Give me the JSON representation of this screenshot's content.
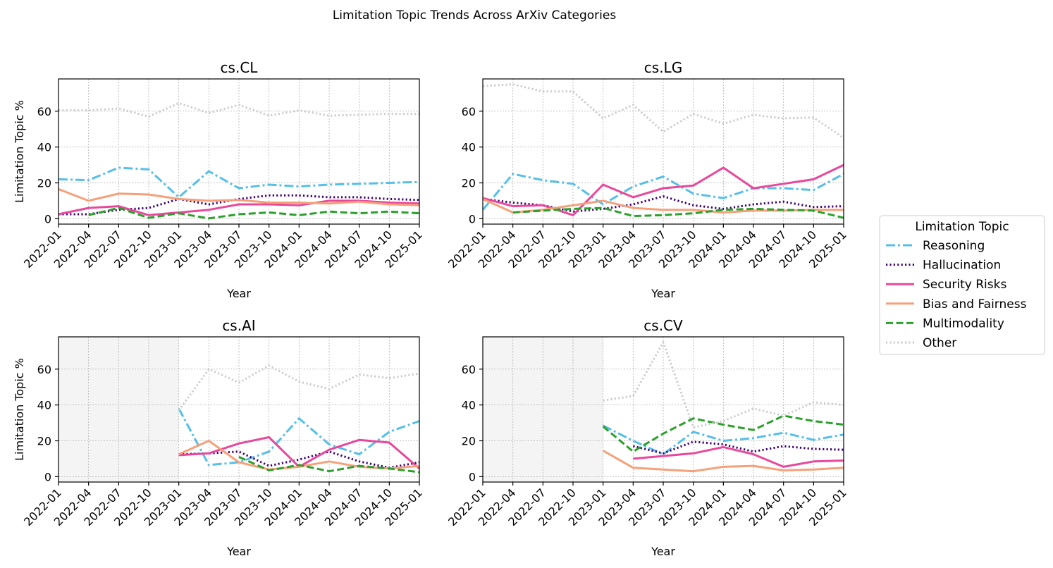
{
  "chart_data": {
    "type": "line",
    "title": "Limitation Topic Trends Across ArXiv Categories",
    "xlabel": "Year",
    "ylabel": "Limitation Topic %",
    "ylim": [
      -3,
      78
    ],
    "yticks": [
      0,
      20,
      40,
      60
    ],
    "x": [
      "2022-01",
      "2022-04",
      "2022-07",
      "2022-10",
      "2023-01",
      "2023-04",
      "2023-07",
      "2023-10",
      "2024-01",
      "2024-04",
      "2024-07",
      "2024-10",
      "2025-01"
    ],
    "legend": {
      "title": "Limitation Topic",
      "location": "right",
      "entries": [
        "Reasoning",
        "Hallucination",
        "Security Risks",
        "Bias and Fairness",
        "Multimodality",
        "Other"
      ]
    },
    "styles": {
      "Reasoning": {
        "color": "#56bfe6",
        "dash": "dashdot"
      },
      "Hallucination": {
        "color": "#3f0077",
        "dash": "dotted"
      },
      "Security Risks": {
        "color": "#e8489b",
        "dash": "solid"
      },
      "Bias and Fairness": {
        "color": "#f6a07a",
        "dash": "solid"
      },
      "Multimodality": {
        "color": "#2ca02c",
        "dash": "dashed"
      },
      "Other": {
        "color": "#cccccc",
        "dash": "dotted"
      }
    },
    "shade_color": "#f4f4f4",
    "panels": [
      {
        "name": "cs.CL",
        "series": [
          {
            "name": "Reasoning",
            "values": [
              22,
              21.5,
              28.5,
              27.5,
              12,
              26.5,
              17,
              19,
              18,
              19,
              19.5,
              20,
              20.5
            ]
          },
          {
            "name": "Hallucination",
            "values": [
              2.5,
              2.5,
              5,
              6,
              11,
              8,
              11,
              13,
              13,
              12,
              12,
              11,
              10.5
            ]
          },
          {
            "name": "Security Risks",
            "values": [
              2.5,
              6,
              7,
              2,
              3.5,
              5,
              8,
              8,
              7.5,
              10,
              10,
              9,
              8.5
            ]
          },
          {
            "name": "Bias and Fairness",
            "values": [
              16.5,
              10,
              14,
              13.5,
              11,
              10,
              10.5,
              9,
              9,
              8.5,
              9.5,
              8,
              7.5
            ]
          },
          {
            "name": "Multimodality",
            "values": [
              null,
              2,
              6,
              0.5,
              3,
              0.2,
              2.5,
              3.5,
              2,
              4,
              3,
              4,
              3
            ]
          },
          {
            "name": "Other",
            "values": [
              60.5,
              60.5,
              61.5,
              57,
              64.5,
              59,
              63.5,
              57.5,
              60.5,
              57.5,
              58,
              58.5,
              58.5
            ]
          }
        ]
      },
      {
        "name": "cs.LG",
        "series": [
          {
            "name": "Reasoning",
            "values": [
              5,
              25,
              21.5,
              19.5,
              8,
              18,
              23.5,
              14,
              11.5,
              17,
              17,
              16,
              25
            ]
          },
          {
            "name": "Hallucination",
            "values": [
              11,
              9,
              7.5,
              4,
              5.5,
              8,
              12.5,
              7.5,
              5.5,
              8,
              9.5,
              6.5,
              7
            ]
          },
          {
            "name": "Security Risks",
            "values": [
              11.5,
              7,
              7.5,
              2,
              19,
              12,
              17,
              18.5,
              28.5,
              17,
              19.5,
              22,
              30
            ]
          },
          {
            "name": "Bias and Fairness",
            "values": [
              11,
              3.5,
              5,
              7.5,
              10,
              6,
              5,
              5,
              3.5,
              4.5,
              4.5,
              5,
              5
            ]
          },
          {
            "name": "Multimodality",
            "values": [
              null,
              3.5,
              4.5,
              5.5,
              6,
              1.5,
              2,
              3,
              5,
              5.5,
              5,
              4.5,
              0.5
            ]
          },
          {
            "name": "Other",
            "values": [
              74,
              75,
              71,
              71,
              56,
              63.5,
              48.5,
              58.5,
              53,
              58,
              56,
              56.5,
              45
            ]
          }
        ]
      },
      {
        "name": "cs.AI",
        "shade_until": "2023-01",
        "series": [
          {
            "name": "Reasoning",
            "values": [
              null,
              null,
              null,
              null,
              38,
              6.5,
              8,
              14,
              32.5,
              18,
              12.5,
              25,
              31
            ]
          },
          {
            "name": "Hallucination",
            "values": [
              null,
              null,
              null,
              null,
              12.5,
              13,
              14,
              6,
              9.5,
              14,
              8.5,
              5,
              8
            ]
          },
          {
            "name": "Security Risks",
            "values": [
              null,
              null,
              null,
              null,
              12,
              13,
              18.5,
              22,
              5.5,
              15,
              20.5,
              19,
              4.5
            ]
          },
          {
            "name": "Bias and Fairness",
            "values": [
              null,
              null,
              null,
              null,
              12.5,
              20,
              8,
              4,
              5.5,
              8.5,
              5.5,
              4.5,
              6
            ]
          },
          {
            "name": "Multimodality",
            "values": [
              null,
              null,
              null,
              null,
              null,
              null,
              11,
              3.5,
              6.5,
              3,
              6,
              4.5,
              2.5
            ]
          },
          {
            "name": "Other",
            "values": [
              null,
              null,
              null,
              null,
              37,
              60,
              52.5,
              62,
              53,
              49,
              57,
              55,
              57.5
            ]
          }
        ]
      },
      {
        "name": "cs.CV",
        "shade_until": "2023-01",
        "series": [
          {
            "name": "Reasoning",
            "values": [
              null,
              null,
              null,
              null,
              28.5,
              20,
              12.5,
              25,
              20,
              21.5,
              24.5,
              20.5,
              23.5
            ]
          },
          {
            "name": "Hallucination",
            "values": [
              null,
              null,
              null,
              null,
              null,
              17,
              13,
              19.5,
              18,
              14,
              17,
              15.5,
              15
            ]
          },
          {
            "name": "Security Risks",
            "values": [
              null,
              null,
              null,
              null,
              null,
              10,
              11.5,
              13,
              16.5,
              12.5,
              5.5,
              8.5,
              9
            ]
          },
          {
            "name": "Bias and Fairness",
            "values": [
              null,
              null,
              null,
              null,
              14.5,
              5,
              4,
              3,
              5.5,
              6,
              3.5,
              4,
              5
            ]
          },
          {
            "name": "Multimodality",
            "values": [
              null,
              null,
              null,
              null,
              28,
              14,
              24,
              32.5,
              29,
              26,
              34,
              31,
              29
            ]
          },
          {
            "name": "Other",
            "values": [
              null,
              null,
              null,
              null,
              42.5,
              45,
              75,
              27.5,
              31,
              38,
              34,
              41.5,
              40
            ]
          }
        ]
      }
    ]
  }
}
